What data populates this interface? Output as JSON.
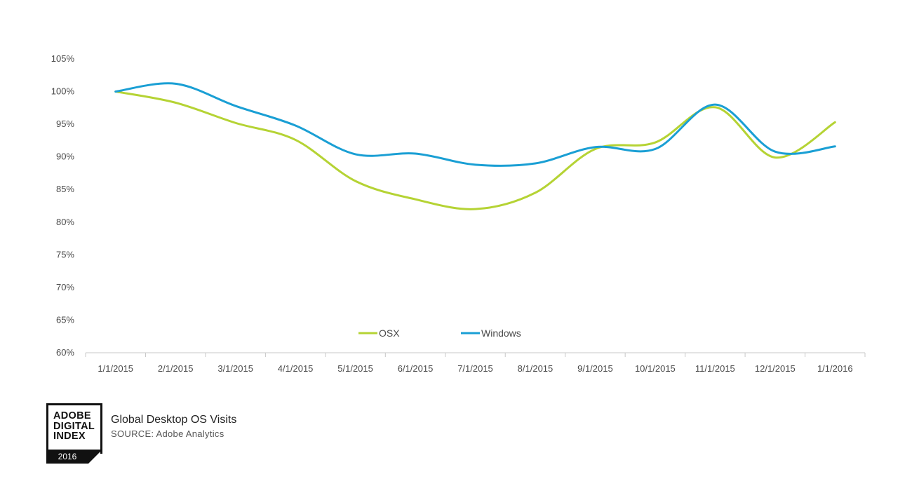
{
  "chart_data": {
    "type": "line",
    "title": "Global Desktop OS Visits",
    "source": "SOURCE: Adobe Analytics",
    "categories": [
      "1/1/2015",
      "2/1/2015",
      "3/1/2015",
      "4/1/2015",
      "5/1/2015",
      "6/1/2015",
      "7/1/2015",
      "8/1/2015",
      "9/1/2015",
      "10/1/2015",
      "11/1/2015",
      "12/1/2015",
      "1/1/2016"
    ],
    "series": [
      {
        "name": "OSX",
        "color": "#b5d334",
        "values": [
          100,
          98.3,
          95.2,
          92.6,
          86.3,
          83.5,
          82.0,
          84.5,
          91.2,
          92.2,
          97.6,
          89.9,
          95.3
        ]
      },
      {
        "name": "Windows",
        "color": "#1a9fd4",
        "values": [
          100,
          101.2,
          97.8,
          94.8,
          90.4,
          90.5,
          88.8,
          89.0,
          91.5,
          91.2,
          98.0,
          90.8,
          91.6
        ]
      }
    ],
    "yticks": [
      "60%",
      "65%",
      "70%",
      "75%",
      "80%",
      "85%",
      "90%",
      "95%",
      "100%",
      "105%"
    ],
    "ylim": [
      60,
      105
    ],
    "xlabel": "",
    "ylabel": "",
    "legend_position": "bottom-center"
  },
  "branding": {
    "lines": [
      "ADOBE",
      "DIGITAL",
      "INDEX"
    ],
    "year": "2016"
  }
}
